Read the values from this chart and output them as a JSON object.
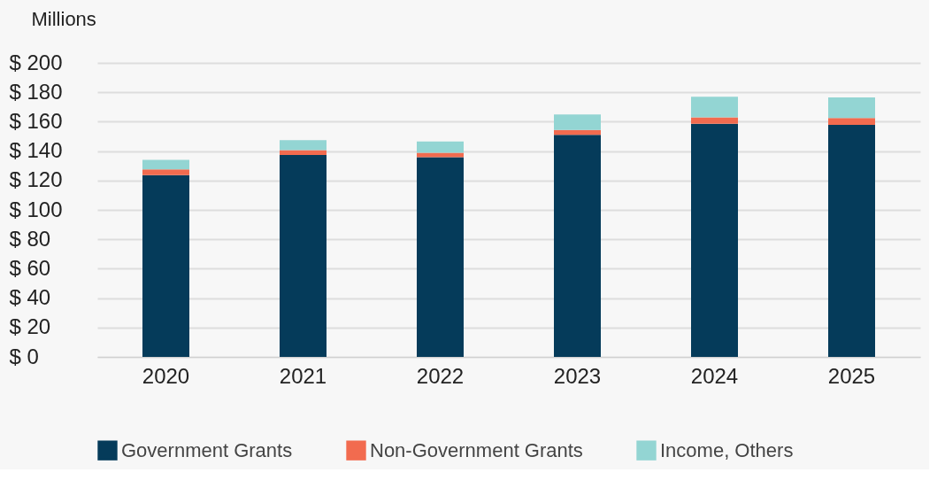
{
  "chart_data": {
    "type": "bar",
    "stacked": true,
    "ylabel": "Millions",
    "categories": [
      "2020",
      "2021",
      "2022",
      "2023",
      "2024",
      "2025"
    ],
    "series": [
      {
        "name": "Government Grants",
        "color": "#053b5a",
        "values": [
          123.6,
          137.3,
          135.9,
          151.0,
          158.6,
          157.9
        ]
      },
      {
        "name": "Non-Government Grants",
        "color": "#f26b4f",
        "values": [
          4.0,
          3.4,
          2.9,
          3.3,
          4.3,
          4.6
        ]
      },
      {
        "name": "Income, Others",
        "color": "#93d5d3",
        "values": [
          6.5,
          6.7,
          7.7,
          10.6,
          14.0,
          14.0
        ]
      }
    ],
    "ylim": [
      0,
      200
    ],
    "yticks": [
      {
        "value": 0,
        "label": "$   0"
      },
      {
        "value": 20,
        "label": "$ 20"
      },
      {
        "value": 40,
        "label": "$ 40"
      },
      {
        "value": 60,
        "label": "$ 60"
      },
      {
        "value": 80,
        "label": "$ 80"
      },
      {
        "value": 100,
        "label": "$ 100"
      },
      {
        "value": 120,
        "label": "$ 120"
      },
      {
        "value": 140,
        "label": "$ 140"
      },
      {
        "value": 160,
        "label": "$ 160"
      },
      {
        "value": 180,
        "label": "$ 180"
      },
      {
        "value": 200,
        "label": "$ 200"
      }
    ],
    "grid": "y",
    "legend": "bottom"
  }
}
